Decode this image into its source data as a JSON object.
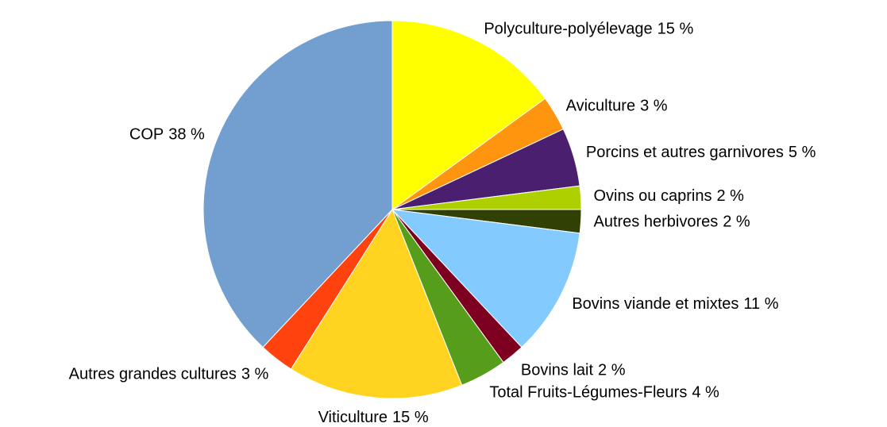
{
  "chart_data": {
    "type": "pie",
    "categories": [
      "Polyculture-polyélevage",
      "Aviculture",
      "Porcins et autres garnivores",
      "Ovins ou caprins",
      "Autres herbivores",
      "Bovins viande et mixtes",
      "Bovins lait",
      "Total Fruits-Légumes-Fleurs",
      "Viticulture",
      "Autres grandes cultures",
      "COP"
    ],
    "values": [
      15,
      3,
      5,
      2,
      2,
      11,
      2,
      4,
      15,
      3,
      38
    ],
    "value_labels": [
      "15 %",
      "3 %",
      "5 %",
      "2 %",
      "2 %",
      "11 %",
      "2 %",
      "4 %",
      "15 %",
      "3 %",
      "38 %"
    ],
    "colors": [
      "#ffff00",
      "#ff950e",
      "#4b1f6f",
      "#aecf00",
      "#314004",
      "#83caff",
      "#7e0021",
      "#579d1c",
      "#ffd320",
      "#ff420e",
      "#729fcf"
    ]
  }
}
